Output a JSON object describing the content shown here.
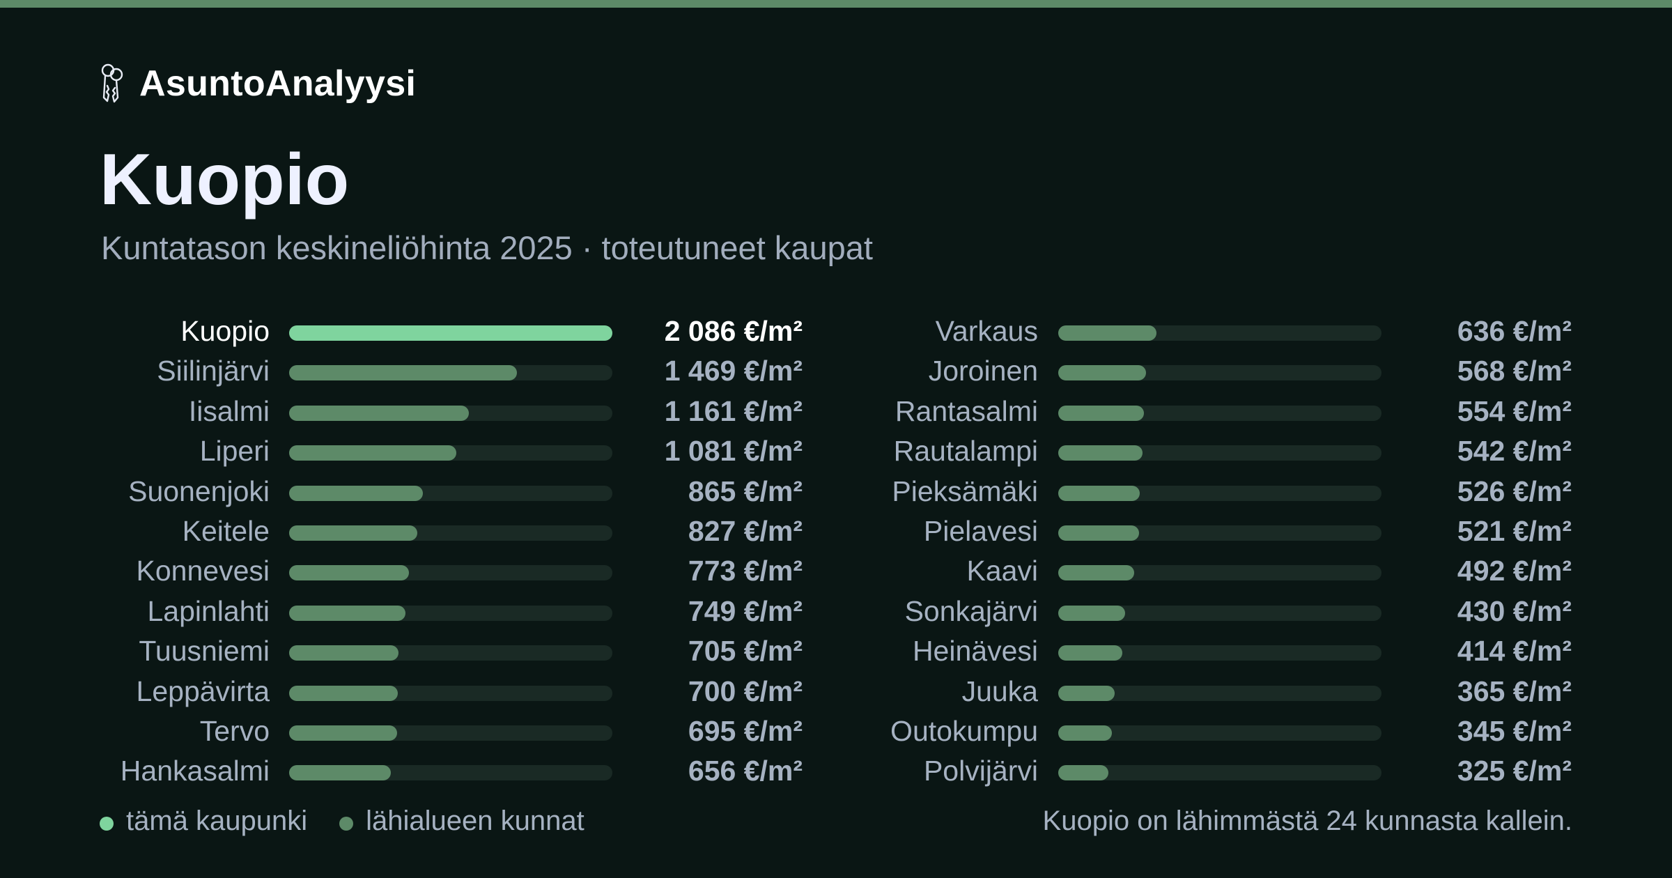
{
  "brand": {
    "name": "AsuntoAnalyysi",
    "icon": "keys-icon"
  },
  "title": "Kuopio",
  "subtitle": "Kuntatason keskineliöhinta 2025 · toteutuneet kaupat",
  "colors": {
    "background": "#0a1614",
    "highlight": "#7fd49e",
    "other": "#5d8a68",
    "track": "#1a2a25",
    "topbar": "#5d8a68"
  },
  "chart_data": {
    "type": "bar",
    "orientation": "horizontal",
    "unit": "€/m²",
    "xlim": [
      0,
      2086
    ],
    "categories": [
      "Kuopio",
      "Siilinjärvi",
      "Iisalmi",
      "Liperi",
      "Suonenjoki",
      "Keitele",
      "Konnevesi",
      "Lapinlahti",
      "Tuusniemi",
      "Leppävirta",
      "Tervo",
      "Hankasalmi",
      "Varkaus",
      "Joroinen",
      "Rantasalmi",
      "Rautalampi",
      "Pieksämäki",
      "Pielavesi",
      "Kaavi",
      "Sonkajärvi",
      "Heinävesi",
      "Juuka",
      "Outokumpu",
      "Polvijärvi"
    ],
    "values": [
      2086,
      1469,
      1161,
      1081,
      865,
      827,
      773,
      749,
      705,
      700,
      695,
      656,
      636,
      568,
      554,
      542,
      526,
      521,
      492,
      430,
      414,
      365,
      345,
      325
    ],
    "labels": [
      "2 086 €/m²",
      "1 469 €/m²",
      "1 161 €/m²",
      "1 081 €/m²",
      "865 €/m²",
      "827 €/m²",
      "773 €/m²",
      "749 €/m²",
      "705 €/m²",
      "700 €/m²",
      "695 €/m²",
      "656 €/m²",
      "636 €/m²",
      "568 €/m²",
      "554 €/m²",
      "542 €/m²",
      "526 €/m²",
      "521 €/m²",
      "492 €/m²",
      "430 €/m²",
      "414 €/m²",
      "365 €/m²",
      "345 €/m²",
      "325 €/m²"
    ],
    "highlight": "Kuopio"
  },
  "legend": {
    "this_city": "tämä kaupunki",
    "nearby": "lähialueen kunnat"
  },
  "note": "Kuopio on lähimmästä 24 kunnasta kallein."
}
